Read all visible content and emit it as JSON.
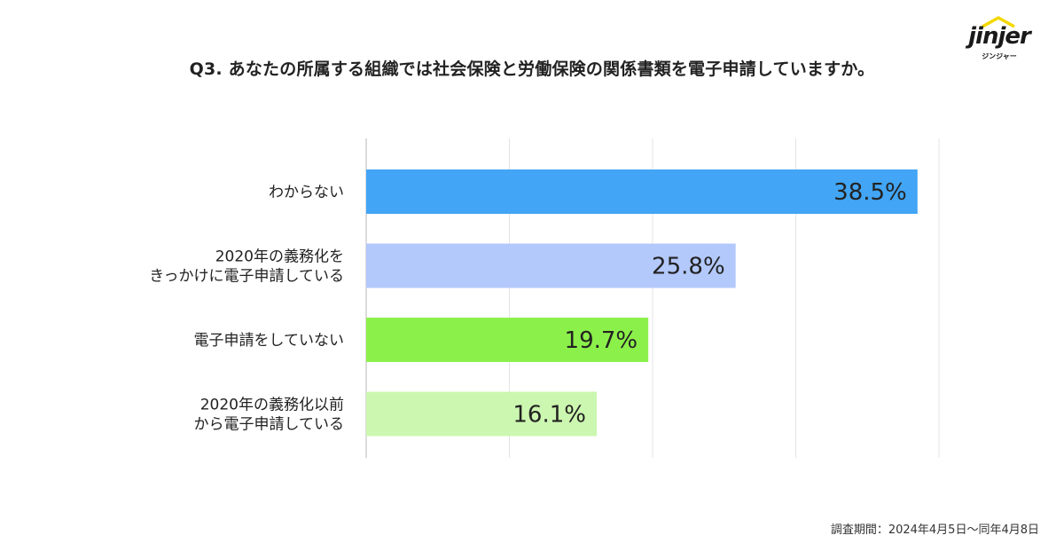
{
  "title": "Q3. あなたの所属する組織では社会保険と労働保険の関係書類を電子申請していますか。",
  "logo": {
    "word": "jinjer",
    "sub": "ジンジャー"
  },
  "footnote": "調査期間：2024年4月5日〜同年4月8日",
  "chart_data": {
    "type": "bar",
    "orientation": "horizontal",
    "categories": [
      [
        "わからない"
      ],
      [
        "2020年の義務化を",
        "きっかけに電子申請している"
      ],
      [
        "電子申請をしていない"
      ],
      [
        "2020年の義務化以前",
        "から電子申請している"
      ]
    ],
    "values": [
      38.5,
      25.8,
      19.7,
      16.1
    ],
    "value_labels": [
      "38.5%",
      "25.8%",
      "19.7%",
      "16.1%"
    ],
    "colors": [
      "#42a5f5",
      "#b3c8fb",
      "#8cf04a",
      "#ccf7b0"
    ],
    "xlim": [
      0,
      40
    ],
    "grid": true,
    "legend": "none"
  }
}
